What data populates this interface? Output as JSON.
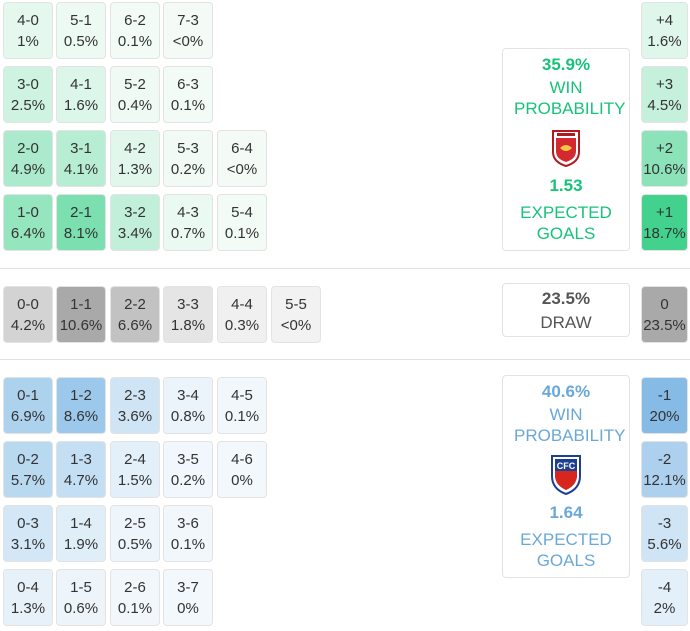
{
  "colors": {
    "home_accent": "#17c37b",
    "away_accent": "#6aa8d8",
    "draw_text": "#555555"
  },
  "home": {
    "win_pct": "35.9%",
    "win_label": "WIN PROBABILITY",
    "xg": "1.53",
    "xg_label": "EXPECTED GOALS",
    "badge_icon": "home-club-crest-icon",
    "rows": [
      [
        {
          "s": "4-0",
          "p": "1%"
        },
        {
          "s": "5-1",
          "p": "0.5%"
        },
        {
          "s": "6-2",
          "p": "0.1%"
        },
        {
          "s": "7-3",
          "p": "<0%"
        }
      ],
      [
        {
          "s": "3-0",
          "p": "2.5%"
        },
        {
          "s": "4-1",
          "p": "1.6%"
        },
        {
          "s": "5-2",
          "p": "0.4%"
        },
        {
          "s": "6-3",
          "p": "0.1%"
        }
      ],
      [
        {
          "s": "2-0",
          "p": "4.9%"
        },
        {
          "s": "3-1",
          "p": "4.1%"
        },
        {
          "s": "4-2",
          "p": "1.3%"
        },
        {
          "s": "5-3",
          "p": "0.2%"
        },
        {
          "s": "6-4",
          "p": "<0%"
        }
      ],
      [
        {
          "s": "1-0",
          "p": "6.4%"
        },
        {
          "s": "2-1",
          "p": "8.1%"
        },
        {
          "s": "3-2",
          "p": "3.4%"
        },
        {
          "s": "4-3",
          "p": "0.7%"
        },
        {
          "s": "5-4",
          "p": "0.1%"
        }
      ]
    ],
    "margins": [
      {
        "m": "+4",
        "p": "1.6%"
      },
      {
        "m": "+3",
        "p": "4.5%"
      },
      {
        "m": "+2",
        "p": "10.6%"
      },
      {
        "m": "+1",
        "p": "18.7%"
      }
    ]
  },
  "draw": {
    "pct": "23.5%",
    "label": "DRAW",
    "cells": [
      {
        "s": "0-0",
        "p": "4.2%"
      },
      {
        "s": "1-1",
        "p": "10.6%"
      },
      {
        "s": "2-2",
        "p": "6.6%"
      },
      {
        "s": "3-3",
        "p": "1.8%"
      },
      {
        "s": "4-4",
        "p": "0.3%"
      },
      {
        "s": "5-5",
        "p": "<0%"
      }
    ],
    "margin": {
      "m": "0",
      "p": "23.5%"
    }
  },
  "away": {
    "win_pct": "40.6%",
    "win_label": "WIN PROBABILITY",
    "xg": "1.64",
    "xg_label": "EXPECTED GOALS",
    "badge_icon": "away-club-crest-icon",
    "rows": [
      [
        {
          "s": "0-1",
          "p": "6.9%"
        },
        {
          "s": "1-2",
          "p": "8.6%"
        },
        {
          "s": "2-3",
          "p": "3.6%"
        },
        {
          "s": "3-4",
          "p": "0.8%"
        },
        {
          "s": "4-5",
          "p": "0.1%"
        }
      ],
      [
        {
          "s": "0-2",
          "p": "5.7%"
        },
        {
          "s": "1-3",
          "p": "4.7%"
        },
        {
          "s": "2-4",
          "p": "1.5%"
        },
        {
          "s": "3-5",
          "p": "0.2%"
        },
        {
          "s": "4-6",
          "p": "0%"
        }
      ],
      [
        {
          "s": "0-3",
          "p": "3.1%"
        },
        {
          "s": "1-4",
          "p": "1.9%"
        },
        {
          "s": "2-5",
          "p": "0.5%"
        },
        {
          "s": "3-6",
          "p": "0.1%"
        }
      ],
      [
        {
          "s": "0-4",
          "p": "1.3%"
        },
        {
          "s": "1-5",
          "p": "0.6%"
        },
        {
          "s": "2-6",
          "p": "0.1%"
        },
        {
          "s": "3-7",
          "p": "0%"
        }
      ]
    ],
    "margins": [
      {
        "m": "-1",
        "p": "20%"
      },
      {
        "m": "-2",
        "p": "12.1%"
      },
      {
        "m": "-3",
        "p": "5.6%"
      },
      {
        "m": "-4",
        "p": "2%"
      }
    ]
  }
}
